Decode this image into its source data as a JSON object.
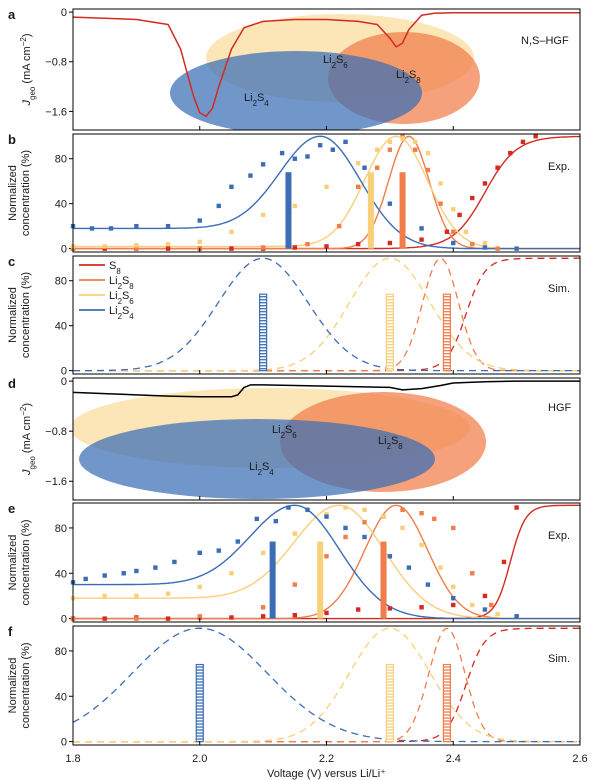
{
  "figure": {
    "x_axis_label": "Voltage (V) versus Li/Li⁺",
    "x_ticks": [
      "1.8",
      "2.0",
      "2.2",
      "2.4",
      "2.6"
    ],
    "x_range": [
      1.8,
      2.6
    ]
  },
  "colors": {
    "S8": "#d42a20",
    "Li2S8": "#f07d4a",
    "Li2S6": "#f9cf7a",
    "Li2S4": "#3a6db5",
    "HGF_curve": "#000000"
  },
  "species_labels": {
    "S8": [
      "S",
      "8"
    ],
    "Li2S8": [
      "Li",
      "2",
      "S",
      "8"
    ],
    "Li2S6": [
      "Li",
      "2",
      "S",
      "6"
    ],
    "Li2S4": [
      "Li",
      "2",
      "S",
      "4"
    ]
  },
  "chart_data": [
    {
      "panel": "a",
      "type": "line",
      "tag": "N,S–HGF",
      "ylabel": [
        "J",
        "geo",
        " (mA cm",
        "−2",
        ")"
      ],
      "yticks": [
        0,
        -0.8,
        -1.6
      ],
      "yticks_text": [
        "0",
        "−0.8",
        "−1.6"
      ],
      "ylim": [
        -1.9,
        0.05
      ],
      "series": [
        {
          "name": "J_geo",
          "color": "#d42a20",
          "x": [
            1.8,
            1.85,
            1.9,
            1.95,
            1.97,
            1.99,
            2.0,
            2.01,
            2.02,
            2.03,
            2.05,
            2.07,
            2.1,
            2.15,
            2.2,
            2.25,
            2.28,
            2.3,
            2.31,
            2.32,
            2.33,
            2.35,
            2.37,
            2.4,
            2.45,
            2.5,
            2.55,
            2.6
          ],
          "y": [
            -0.08,
            -0.1,
            -0.12,
            -0.2,
            -0.6,
            -1.35,
            -1.62,
            -1.68,
            -1.55,
            -1.2,
            -0.6,
            -0.25,
            -0.15,
            -0.12,
            -0.12,
            -0.15,
            -0.2,
            -0.42,
            -0.56,
            -0.5,
            -0.28,
            -0.05,
            -0.02,
            -0.01,
            -0.01,
            -0.01,
            -0.01,
            -0.01
          ]
        }
      ],
      "ellipses": [
        {
          "species": "Li2S6",
          "label": [
            "Li",
            "2",
            "S",
            "6"
          ]
        },
        {
          "species": "Li2S8",
          "label": [
            "Li",
            "2",
            "S",
            "8"
          ]
        },
        {
          "species": "Li2S4",
          "label": [
            "Li",
            "2",
            "S",
            "4"
          ]
        }
      ]
    },
    {
      "panel": "b",
      "type": "scatter",
      "tag": "Exp.",
      "ylabel": [
        "Normalized",
        "concentration (%)"
      ],
      "yticks": [
        0,
        40,
        80
      ],
      "ylim": [
        -3,
        102
      ],
      "series": [
        {
          "name": "S8",
          "color": "#d42a20",
          "points_x": [
            1.8,
            1.85,
            1.9,
            1.95,
            2.0,
            2.05,
            2.1,
            2.15,
            2.2,
            2.25,
            2.3,
            2.35,
            2.39,
            2.41,
            2.43,
            2.45,
            2.47,
            2.49,
            2.51,
            2.53
          ],
          "points_y": [
            0,
            0,
            0,
            0,
            0,
            0,
            0,
            1,
            2,
            4,
            5,
            8,
            15,
            30,
            45,
            58,
            72,
            85,
            95,
            100
          ]
        },
        {
          "name": "Li2S8",
          "color": "#f07d4a",
          "points_x": [
            1.8,
            1.9,
            2.0,
            2.1,
            2.17,
            2.22,
            2.25,
            2.28,
            2.3,
            2.32,
            2.34,
            2.36,
            2.38,
            2.4,
            2.43,
            2.47
          ],
          "points_y": [
            0,
            0,
            0,
            1,
            4,
            20,
            55,
            72,
            88,
            100,
            88,
            70,
            40,
            15,
            4,
            0
          ]
        },
        {
          "name": "Li2S6",
          "color": "#f9cf7a",
          "points_x": [
            1.8,
            1.85,
            1.9,
            1.95,
            2.0,
            2.05,
            2.1,
            2.15,
            2.2,
            2.25,
            2.28,
            2.3,
            2.32,
            2.34,
            2.36,
            2.38,
            2.4,
            2.42,
            2.45,
            2.5
          ],
          "points_y": [
            2,
            2,
            3,
            4,
            6,
            15,
            30,
            38,
            55,
            76,
            88,
            95,
            98,
            95,
            85,
            58,
            35,
            15,
            5,
            0
          ]
        },
        {
          "name": "Li2S4",
          "color": "#3a6db5",
          "points_x": [
            1.8,
            1.83,
            1.86,
            1.9,
            1.95,
            2.0,
            2.03,
            2.05,
            2.08,
            2.1,
            2.13,
            2.15,
            2.17,
            2.19,
            2.21,
            2.23,
            2.26,
            2.3,
            2.35,
            2.4,
            2.45,
            2.5
          ],
          "points_y": [
            20,
            18,
            18,
            20,
            20,
            25,
            38,
            55,
            65,
            75,
            85,
            80,
            82,
            92,
            88,
            95,
            72,
            40,
            18,
            5,
            1,
            0
          ]
        }
      ],
      "fits": [
        {
          "name": "S8",
          "color": "#d42a20",
          "center": 2.45,
          "width": 0.025,
          "kind": "sigmoid"
        },
        {
          "name": "Li2S8",
          "color": "#f07d4a",
          "center": 2.33,
          "width": 0.045,
          "kind": "peak"
        },
        {
          "name": "Li2S6",
          "color": "#f9cf7a",
          "center": 2.31,
          "width": 0.07,
          "kind": "peak",
          "base": 2
        },
        {
          "name": "Li2S4",
          "color": "#3a6db5",
          "center": 2.19,
          "width": 0.09,
          "kind": "peak",
          "base": 18
        }
      ],
      "bars": [
        {
          "species": "Li2S4",
          "x": 2.14,
          "height": 68,
          "color": "#3a6db5"
        },
        {
          "species": "Li2S6",
          "x": 2.27,
          "height": 68,
          "color": "#f9cf7a"
        },
        {
          "species": "Li2S8",
          "x": 2.32,
          "height": 68,
          "color": "#f07d4a"
        }
      ]
    },
    {
      "panel": "c",
      "type": "line",
      "tag": "Sim.",
      "ylabel": [
        "Normalized",
        "concentration (%)"
      ],
      "yticks": [
        0,
        40,
        80
      ],
      "ylim": [
        -3,
        102
      ],
      "legend_placement": "top-left",
      "series": [
        {
          "name": "S8",
          "color": "#d42a20",
          "dashed": true,
          "center": 2.42,
          "width": 0.015,
          "kind": "sigmoid"
        },
        {
          "name": "Li2S8",
          "color": "#f07d4a",
          "dashed": true,
          "center": 2.38,
          "width": 0.04,
          "kind": "peak"
        },
        {
          "name": "Li2S6",
          "color": "#f9cf7a",
          "dashed": true,
          "center": 2.3,
          "width": 0.09,
          "kind": "peak"
        },
        {
          "name": "Li2S4",
          "color": "#3a6db5",
          "dashed": true,
          "center": 2.1,
          "width": 0.1,
          "kind": "peak"
        }
      ],
      "legend": [
        "S8",
        "Li2S8",
        "Li2S6",
        "Li2S4"
      ],
      "bars": [
        {
          "species": "Li2S4",
          "x": 2.1,
          "height": 68,
          "color": "#3a6db5"
        },
        {
          "species": "Li2S6",
          "x": 2.3,
          "height": 68,
          "color": "#f9cf7a"
        },
        {
          "species": "Li2S8",
          "x": 2.39,
          "height": 68,
          "color": "#f07d4a"
        }
      ]
    },
    {
      "panel": "d",
      "type": "line",
      "tag": "HGF",
      "ylabel": [
        "J",
        "geo",
        " (mA cm",
        "−2",
        ")"
      ],
      "yticks": [
        0,
        -0.8,
        -1.6
      ],
      "yticks_text": [
        "0",
        "−0.8",
        "−1.6"
      ],
      "ylim": [
        -1.9,
        0.05
      ],
      "series": [
        {
          "name": "J_geo",
          "color": "#000000",
          "x": [
            1.8,
            1.85,
            1.9,
            1.95,
            2.0,
            2.05,
            2.06,
            2.07,
            2.08,
            2.1,
            2.15,
            2.2,
            2.25,
            2.3,
            2.32,
            2.35,
            2.38,
            2.4,
            2.45,
            2.5,
            2.55,
            2.6
          ],
          "y": [
            -0.18,
            -0.2,
            -0.22,
            -0.24,
            -0.25,
            -0.25,
            -0.22,
            -0.1,
            -0.06,
            -0.06,
            -0.07,
            -0.08,
            -0.09,
            -0.1,
            -0.14,
            -0.12,
            -0.07,
            -0.03,
            -0.01,
            0,
            0,
            0
          ]
        }
      ],
      "ellipses": [
        {
          "species": "Li2S6",
          "label": [
            "Li",
            "2",
            "S",
            "6"
          ]
        },
        {
          "species": "Li2S8",
          "label": [
            "Li",
            "2",
            "S",
            "8"
          ]
        },
        {
          "species": "Li2S4",
          "label": [
            "Li",
            "2",
            "S",
            "4"
          ]
        }
      ]
    },
    {
      "panel": "e",
      "type": "scatter",
      "tag": "Exp.",
      "ylabel": [
        "Normalized",
        "concentration (%)"
      ],
      "yticks": [
        0,
        40,
        80
      ],
      "ylim": [
        -3,
        102
      ],
      "series": [
        {
          "name": "S8",
          "color": "#d42a20",
          "points_x": [
            1.8,
            1.85,
            1.9,
            1.95,
            2.0,
            2.05,
            2.1,
            2.15,
            2.2,
            2.25,
            2.3,
            2.35,
            2.4,
            2.45,
            2.48,
            2.5
          ],
          "points_y": [
            0,
            0,
            1,
            0,
            1,
            1,
            2,
            3,
            5,
            8,
            9,
            10,
            12,
            20,
            50,
            98
          ]
        },
        {
          "name": "Li2S8",
          "color": "#f07d4a",
          "points_x": [
            1.8,
            1.9,
            2.0,
            2.1,
            2.15,
            2.2,
            2.23,
            2.26,
            2.29,
            2.32,
            2.35,
            2.37,
            2.4,
            2.43,
            2.46,
            2.5
          ],
          "points_y": [
            0,
            0,
            2,
            10,
            30,
            55,
            72,
            85,
            90,
            96,
            93,
            88,
            80,
            40,
            12,
            2
          ]
        },
        {
          "name": "Li2S6",
          "color": "#f9cf7a",
          "points_x": [
            1.8,
            1.85,
            1.9,
            1.95,
            2.0,
            2.05,
            2.1,
            2.15,
            2.2,
            2.23,
            2.26,
            2.29,
            2.32,
            2.35,
            2.38,
            2.4,
            2.43,
            2.47
          ],
          "points_y": [
            18,
            20,
            20,
            22,
            28,
            40,
            58,
            75,
            92,
            98,
            96,
            90,
            80,
            65,
            45,
            28,
            12,
            4
          ]
        },
        {
          "name": "Li2S4",
          "color": "#3a6db5",
          "points_x": [
            1.8,
            1.82,
            1.85,
            1.88,
            1.9,
            1.93,
            1.96,
            2.0,
            2.03,
            2.06,
            2.09,
            2.12,
            2.14,
            2.17,
            2.2,
            2.23,
            2.26,
            2.3,
            2.33,
            2.36,
            2.4,
            2.45,
            2.5
          ],
          "points_y": [
            32,
            35,
            38,
            40,
            42,
            45,
            50,
            58,
            60,
            68,
            88,
            86,
            98,
            96,
            90,
            80,
            72,
            55,
            45,
            30,
            18,
            8,
            2
          ]
        }
      ],
      "fits": [
        {
          "name": "S8",
          "color": "#d42a20",
          "center": 2.49,
          "width": 0.012,
          "kind": "sigmoid"
        },
        {
          "name": "Li2S8",
          "color": "#f07d4a",
          "center": 2.31,
          "width": 0.07,
          "kind": "peak"
        },
        {
          "name": "Li2S6",
          "color": "#f9cf7a",
          "center": 2.22,
          "width": 0.1,
          "kind": "peak",
          "base": 18
        },
        {
          "name": "Li2S4",
          "color": "#3a6db5",
          "center": 2.15,
          "width": 0.1,
          "kind": "peak",
          "base": 30
        }
      ],
      "bars": [
        {
          "species": "Li2S4",
          "x": 2.115,
          "height": 68,
          "color": "#3a6db5"
        },
        {
          "species": "Li2S6",
          "x": 2.19,
          "height": 68,
          "color": "#f9cf7a"
        },
        {
          "species": "Li2S8",
          "x": 2.29,
          "height": 68,
          "color": "#f07d4a"
        }
      ]
    },
    {
      "panel": "f",
      "type": "line",
      "tag": "Sim.",
      "ylabel": [
        "Normalized",
        "concentration (%)"
      ],
      "yticks": [
        0,
        40,
        80
      ],
      "ylim": [
        -3,
        102
      ],
      "series": [
        {
          "name": "S8",
          "color": "#d42a20",
          "dashed": true,
          "center": 2.42,
          "width": 0.015,
          "kind": "sigmoid"
        },
        {
          "name": "Li2S8",
          "color": "#f07d4a",
          "dashed": true,
          "center": 2.39,
          "width": 0.04,
          "kind": "peak"
        },
        {
          "name": "Li2S6",
          "color": "#f9cf7a",
          "dashed": true,
          "center": 2.3,
          "width": 0.09,
          "kind": "peak"
        },
        {
          "name": "Li2S4",
          "color": "#3a6db5",
          "dashed": true,
          "center": 2.0,
          "width": 0.15,
          "kind": "peak"
        }
      ],
      "bars": [
        {
          "species": "Li2S4",
          "x": 2.0,
          "height": 68,
          "color": "#3a6db5"
        },
        {
          "species": "Li2S6",
          "x": 2.3,
          "height": 68,
          "color": "#f9cf7a"
        },
        {
          "species": "Li2S8",
          "x": 2.39,
          "height": 68,
          "color": "#f07d4a"
        }
      ]
    }
  ]
}
